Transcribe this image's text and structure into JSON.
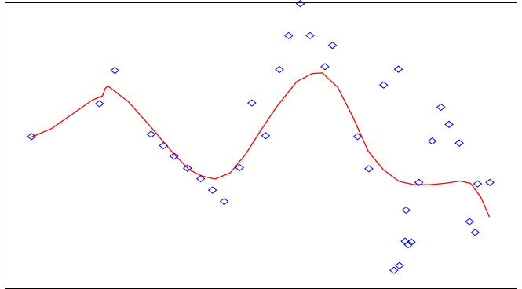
{
  "chart_data": {
    "type": "scatter",
    "title": "",
    "xlabel": "",
    "ylabel": "",
    "xlim": [
      0,
      100
    ],
    "ylim": [
      0,
      100
    ],
    "grid": false,
    "legend": "none",
    "colors": {
      "points": "#0000ff",
      "curve": "#ff0000",
      "frame": "#000000",
      "background": "#ffffff"
    },
    "series": [
      {
        "type": "scatter",
        "marker": "diamond",
        "x": [
          5.1,
          18.4,
          21.4,
          28.5,
          30.9,
          33.0,
          35.6,
          38.2,
          40.5,
          42.8,
          45.8,
          48.2,
          50.9,
          53.6,
          55.4,
          57.7,
          59.6,
          62.5,
          64.0,
          68.9,
          71.1,
          76.9,
          74.0,
          78.4,
          78.2,
          78.8,
          79.4,
          76.0,
          77.1,
          80.9,
          83.5,
          85.2,
          86.8,
          88.8,
          90.8,
          91.9,
          92.4,
          94.8
        ],
        "y": [
          53.2,
          64.7,
          76.4,
          54.0,
          50.0,
          46.3,
          42.1,
          38.4,
          34.4,
          30.4,
          42.3,
          65.0,
          53.5,
          76.7,
          88.6,
          99.8,
          88.6,
          77.7,
          85.2,
          53.2,
          41.9,
          76.8,
          71.3,
          27.4,
          16.5,
          15.3,
          16.2,
          6.3,
          7.9,
          37.1,
          51.6,
          63.5,
          57.5,
          50.9,
          23.4,
          19.6,
          36.6,
          37.1
        ]
      },
      {
        "type": "line",
        "x": [
          5,
          9,
          13,
          17,
          19,
          19.5,
          20,
          24,
          28,
          33,
          36,
          38.5,
          41,
          44,
          47,
          50,
          53,
          57,
          60,
          62,
          65,
          68,
          71,
          74,
          77,
          80,
          83,
          86,
          89,
          91,
          93,
          94.7
        ],
        "y": [
          53,
          56,
          61,
          66,
          67.5,
          70,
          71,
          65.5,
          57.5,
          47,
          41.5,
          39.3,
          38.3,
          40.5,
          47,
          55.5,
          63.5,
          72.5,
          75.3,
          75.5,
          70.5,
          60,
          48,
          41.5,
          37.5,
          36.3,
          36.3,
          36.8,
          37.6,
          36.8,
          32,
          25
        ]
      }
    ]
  }
}
